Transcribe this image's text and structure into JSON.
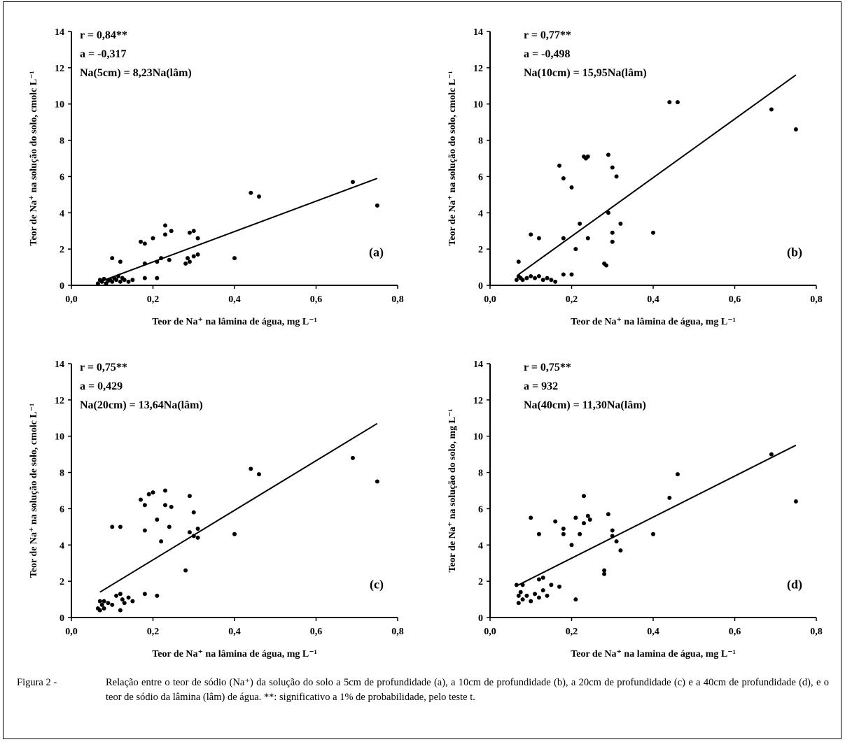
{
  "caption": {
    "prefix": "Figura 2 -",
    "text": "Relação entre o teor de sódio (Na⁺) da solução do solo a 5cm de profundidade (a), a 10cm de profundidade (b), a 20cm de profundidade (c) e a 40cm de profundidade (d), e o teor de sódio da lâmina (lâm) de água. **: significativo a 1% de probabilidade, pelo teste t."
  },
  "chart_data": [
    {
      "type": "scatter",
      "panel_label": "(a)",
      "stats": [
        "r = 0,84**",
        "a = -0,317",
        "Na(5cm) = 8,23Na(lâm)"
      ],
      "xlabel": "Teor de Na⁺ na lâmina de água, mg L⁻¹",
      "ylabel": "Teor de Na⁺ na solução do solo, cmolc L⁻¹",
      "xlim": [
        0,
        0.8
      ],
      "ylim": [
        0,
        14
      ],
      "xticks": [
        "0,0",
        "0,2",
        "0,4",
        "0,6",
        "0,8"
      ],
      "yticks": [
        "0",
        "2",
        "4",
        "6",
        "8",
        "10",
        "12",
        "14"
      ],
      "fit_line": {
        "x": [
          0.07,
          0.75
        ],
        "y": [
          0.2,
          5.9
        ]
      },
      "points": [
        [
          0.065,
          0.1
        ],
        [
          0.07,
          0.3
        ],
        [
          0.075,
          0.2
        ],
        [
          0.08,
          0.35
        ],
        [
          0.085,
          0.1
        ],
        [
          0.09,
          0.25
        ],
        [
          0.095,
          0.3
        ],
        [
          0.1,
          0.2
        ],
        [
          0.1,
          1.5
        ],
        [
          0.105,
          0.4
        ],
        [
          0.11,
          0.3
        ],
        [
          0.115,
          0.5
        ],
        [
          0.12,
          1.3
        ],
        [
          0.12,
          0.2
        ],
        [
          0.125,
          0.4
        ],
        [
          0.13,
          0.3
        ],
        [
          0.14,
          0.2
        ],
        [
          0.15,
          0.3
        ],
        [
          0.17,
          2.4
        ],
        [
          0.18,
          2.3
        ],
        [
          0.18,
          1.2
        ],
        [
          0.18,
          0.4
        ],
        [
          0.2,
          2.6
        ],
        [
          0.21,
          0.4
        ],
        [
          0.21,
          1.3
        ],
        [
          0.22,
          1.5
        ],
        [
          0.23,
          2.8
        ],
        [
          0.23,
          3.3
        ],
        [
          0.24,
          1.4
        ],
        [
          0.245,
          3.0
        ],
        [
          0.28,
          1.2
        ],
        [
          0.285,
          1.5
        ],
        [
          0.29,
          2.9
        ],
        [
          0.29,
          1.3
        ],
        [
          0.3,
          1.6
        ],
        [
          0.3,
          3.0
        ],
        [
          0.31,
          2.6
        ],
        [
          0.31,
          1.7
        ],
        [
          0.4,
          1.5
        ],
        [
          0.44,
          5.1
        ],
        [
          0.46,
          4.9
        ],
        [
          0.69,
          5.7
        ],
        [
          0.75,
          4.4
        ]
      ]
    },
    {
      "type": "scatter",
      "panel_label": "(b)",
      "stats": [
        "r = 0,77**",
        "a = -0,498",
        "Na(10cm) = 15,95Na(lâm)"
      ],
      "xlabel": "Teor de Na⁺ na lâmina de água, mg L⁻¹",
      "ylabel": "Teor de Na⁺ na solução do solo, cmolc L⁻¹",
      "xlim": [
        0,
        0.8
      ],
      "ylim": [
        0,
        14
      ],
      "xticks": [
        "0,0",
        "0,2",
        "0,4",
        "0,6",
        "0,8"
      ],
      "yticks": [
        "0",
        "2",
        "4",
        "6",
        "8",
        "10",
        "12",
        "14"
      ],
      "fit_line": {
        "x": [
          0.07,
          0.75
        ],
        "y": [
          0.6,
          11.6
        ]
      },
      "points": [
        [
          0.065,
          0.3
        ],
        [
          0.07,
          1.3
        ],
        [
          0.07,
          0.5
        ],
        [
          0.075,
          0.4
        ],
        [
          0.08,
          0.3
        ],
        [
          0.09,
          0.4
        ],
        [
          0.1,
          2.8
        ],
        [
          0.1,
          0.5
        ],
        [
          0.11,
          0.4
        ],
        [
          0.12,
          2.6
        ],
        [
          0.12,
          0.5
        ],
        [
          0.13,
          0.3
        ],
        [
          0.14,
          0.4
        ],
        [
          0.15,
          0.3
        ],
        [
          0.16,
          0.2
        ],
        [
          0.17,
          6.6
        ],
        [
          0.18,
          5.9
        ],
        [
          0.18,
          2.6
        ],
        [
          0.18,
          0.6
        ],
        [
          0.2,
          5.4
        ],
        [
          0.2,
          0.6
        ],
        [
          0.21,
          2.0
        ],
        [
          0.22,
          3.4
        ],
        [
          0.23,
          7.1
        ],
        [
          0.235,
          7.0
        ],
        [
          0.24,
          7.1
        ],
        [
          0.24,
          2.6
        ],
        [
          0.28,
          1.2
        ],
        [
          0.285,
          1.1
        ],
        [
          0.29,
          7.2
        ],
        [
          0.29,
          4.0
        ],
        [
          0.3,
          6.5
        ],
        [
          0.3,
          2.9
        ],
        [
          0.3,
          2.4
        ],
        [
          0.31,
          6.0
        ],
        [
          0.32,
          3.4
        ],
        [
          0.4,
          2.9
        ],
        [
          0.44,
          10.1
        ],
        [
          0.46,
          10.1
        ],
        [
          0.69,
          9.7
        ],
        [
          0.75,
          8.6
        ]
      ]
    },
    {
      "type": "scatter",
      "panel_label": "(c)",
      "stats": [
        "r = 0,75**",
        "a = 0,429",
        "Na(20cm) = 13,64Na(lâm)"
      ],
      "xlabel": "Teor de Na⁺ na lâmina de água, mg L⁻¹",
      "ylabel": "Teor de Na⁺ na solução de solo, cmolc L⁻¹",
      "xlim": [
        0,
        0.8
      ],
      "ylim": [
        0,
        14
      ],
      "xticks": [
        "0,0",
        "0,2",
        "0,4",
        "0,6",
        "0,8"
      ],
      "yticks": [
        "0",
        "2",
        "4",
        "6",
        "8",
        "10",
        "12",
        "14"
      ],
      "fit_line": {
        "x": [
          0.07,
          0.75
        ],
        "y": [
          1.4,
          10.7
        ]
      },
      "points": [
        [
          0.065,
          0.5
        ],
        [
          0.07,
          0.9
        ],
        [
          0.07,
          0.4
        ],
        [
          0.075,
          0.7
        ],
        [
          0.08,
          0.5
        ],
        [
          0.08,
          0.9
        ],
        [
          0.09,
          0.8
        ],
        [
          0.1,
          5.0
        ],
        [
          0.1,
          0.7
        ],
        [
          0.11,
          1.2
        ],
        [
          0.12,
          5.0
        ],
        [
          0.12,
          1.3
        ],
        [
          0.12,
          0.4
        ],
        [
          0.125,
          1.0
        ],
        [
          0.13,
          0.8
        ],
        [
          0.14,
          1.1
        ],
        [
          0.15,
          0.9
        ],
        [
          0.17,
          6.5
        ],
        [
          0.18,
          6.2
        ],
        [
          0.18,
          4.8
        ],
        [
          0.18,
          1.3
        ],
        [
          0.19,
          6.8
        ],
        [
          0.2,
          6.9
        ],
        [
          0.21,
          5.4
        ],
        [
          0.21,
          1.2
        ],
        [
          0.22,
          4.2
        ],
        [
          0.23,
          7.0
        ],
        [
          0.23,
          6.2
        ],
        [
          0.24,
          5.0
        ],
        [
          0.245,
          6.1
        ],
        [
          0.28,
          2.6
        ],
        [
          0.29,
          6.7
        ],
        [
          0.29,
          4.7
        ],
        [
          0.3,
          5.8
        ],
        [
          0.3,
          4.5
        ],
        [
          0.31,
          4.9
        ],
        [
          0.31,
          4.4
        ],
        [
          0.4,
          4.6
        ],
        [
          0.44,
          8.2
        ],
        [
          0.46,
          7.9
        ],
        [
          0.69,
          8.8
        ],
        [
          0.75,
          7.5
        ]
      ]
    },
    {
      "type": "scatter",
      "panel_label": "(d)",
      "stats": [
        "r = 0,75**",
        "a = 932",
        "Na(40cm) = 11,30Na(lâm)"
      ],
      "xlabel": "Teor de Na⁺ na lamina de água, mg L⁻¹",
      "ylabel": "Teor de Na⁺ na solução do solo, mg L⁻¹",
      "xlim": [
        0,
        0.8
      ],
      "ylim": [
        0,
        14
      ],
      "xticks": [
        "0,0",
        "0,2",
        "0,4",
        "0,6",
        "0,8"
      ],
      "yticks": [
        "0",
        "2",
        "4",
        "6",
        "8",
        "10",
        "12",
        "14"
      ],
      "fit_line": {
        "x": [
          0.07,
          0.75
        ],
        "y": [
          1.8,
          9.5
        ]
      },
      "points": [
        [
          0.065,
          1.8
        ],
        [
          0.07,
          1.2
        ],
        [
          0.07,
          0.8
        ],
        [
          0.075,
          1.4
        ],
        [
          0.08,
          1.0
        ],
        [
          0.08,
          1.8
        ],
        [
          0.09,
          1.2
        ],
        [
          0.1,
          5.5
        ],
        [
          0.1,
          0.9
        ],
        [
          0.11,
          1.3
        ],
        [
          0.12,
          4.6
        ],
        [
          0.12,
          2.1
        ],
        [
          0.12,
          1.1
        ],
        [
          0.13,
          1.5
        ],
        [
          0.13,
          2.2
        ],
        [
          0.14,
          1.2
        ],
        [
          0.15,
          1.8
        ],
        [
          0.16,
          5.3
        ],
        [
          0.17,
          1.7
        ],
        [
          0.18,
          4.9
        ],
        [
          0.18,
          4.6
        ],
        [
          0.2,
          4.0
        ],
        [
          0.21,
          5.5
        ],
        [
          0.21,
          1.0
        ],
        [
          0.22,
          4.6
        ],
        [
          0.23,
          6.7
        ],
        [
          0.23,
          5.2
        ],
        [
          0.24,
          5.6
        ],
        [
          0.245,
          5.4
        ],
        [
          0.28,
          2.4
        ],
        [
          0.28,
          2.6
        ],
        [
          0.29,
          5.7
        ],
        [
          0.3,
          4.8
        ],
        [
          0.3,
          4.5
        ],
        [
          0.31,
          4.2
        ],
        [
          0.32,
          3.7
        ],
        [
          0.4,
          4.6
        ],
        [
          0.44,
          6.6
        ],
        [
          0.46,
          7.9
        ],
        [
          0.69,
          9.0
        ],
        [
          0.75,
          6.4
        ]
      ]
    }
  ]
}
